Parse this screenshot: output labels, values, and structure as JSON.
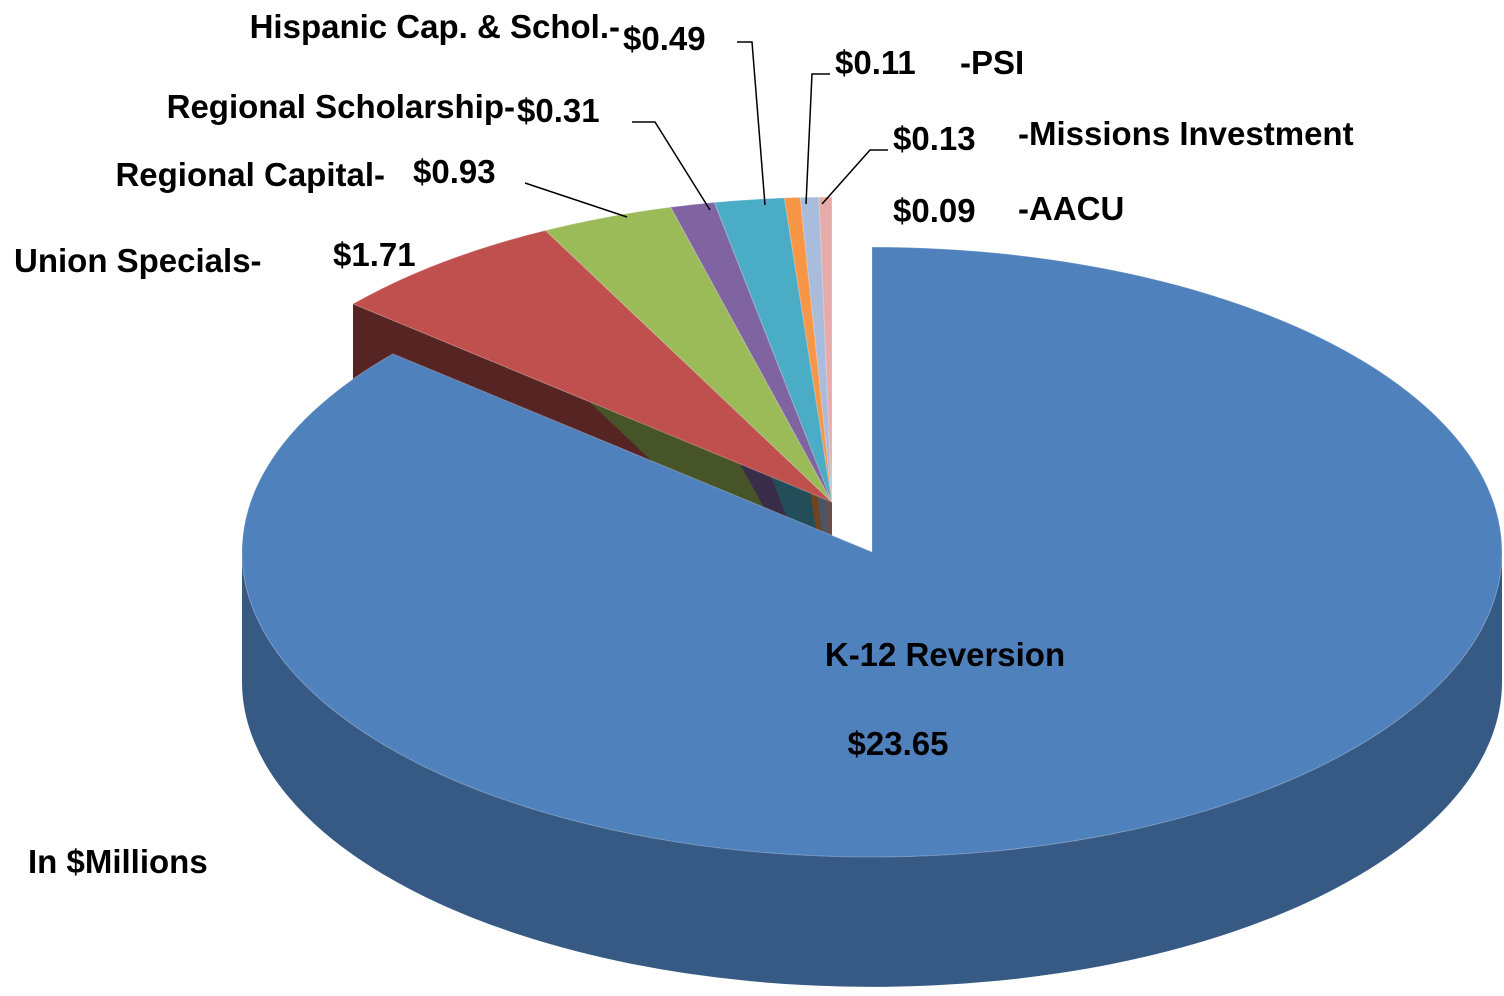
{
  "chart_data": {
    "type": "pie3d",
    "categories": [
      "K-12 Reversion",
      "Union Specials-",
      "Regional Capital-",
      "Regional Scholarship-",
      "Hispanic Cap. & Schol.-",
      "-PSI",
      "-Missions Investment",
      "-AACU"
    ],
    "values": [
      23.65,
      1.71,
      0.93,
      0.31,
      0.49,
      0.11,
      0.13,
      0.09
    ],
    "value_labels": [
      "$23.65",
      "$1.71",
      "$0.93",
      "$0.31",
      "$0.49",
      "$0.11",
      "$0.13",
      "$0.09"
    ],
    "colors": [
      "#4f81bd",
      "#c0504d",
      "#9bbb59",
      "#8064a2",
      "#4bacc6",
      "#f79646",
      "#a9bcdc",
      "#e6aaa8"
    ],
    "note": "In $Millions"
  }
}
